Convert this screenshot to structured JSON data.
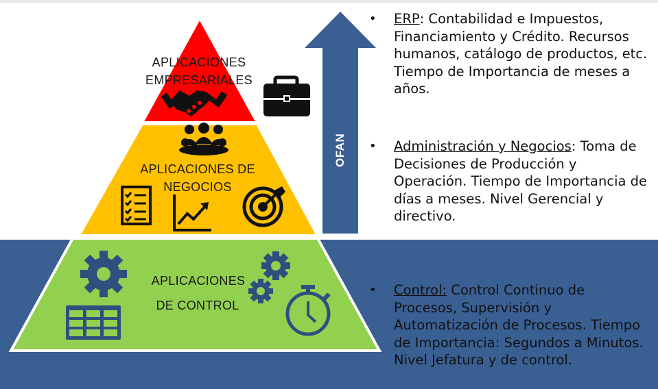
{
  "pyramid": {
    "levels": [
      {
        "id": "top",
        "label_line1": "APLICACIONES",
        "label_line2": "EMPRESARIALES",
        "color": "#ff0000"
      },
      {
        "id": "middle",
        "label_line1": "APLICACIONES DE",
        "label_line2": "NEGOCIOS",
        "color": "#ffc000"
      },
      {
        "id": "bottom",
        "label_line1": "APLICACIONES",
        "label_line2": "DE CONTROL",
        "color": "#92d050"
      }
    ]
  },
  "arrow": {
    "label": "OFAN",
    "color": "#3a5f93"
  },
  "band_color": "#3a5f93",
  "bullets": [
    {
      "bullet": "•",
      "title": "ERP",
      "separator": ":",
      "text": " Contabilidad e Impuestos, Financiamiento y Crédito. Recursos humanos, catálogo de productos, etc. Tiempo de Importancia de meses a años."
    },
    {
      "bullet": "•",
      "title": "Administración y Negocios",
      "separator": ":",
      "text": " Toma de Decisiones de Producción y Operación. Tiempo de Importancia de días a meses. Nivel Gerencial y directivo."
    },
    {
      "bullet": "•",
      "title": "Control:",
      "separator": "",
      "text": " Control Continuo de Procesos, Supervisión y Automatización de Procesos. Tiempo de Importancia: Segundos a Minutos. Nivel Jefatura y de control."
    }
  ],
  "icons": {
    "top": [
      "handshake-icon",
      "briefcase-icon"
    ],
    "middle": [
      "team-meeting-icon",
      "checklist-icon",
      "growth-chart-icon",
      "target-icon"
    ],
    "bottom": [
      "gear-icon",
      "table-grid-icon",
      "gears-icon",
      "stopwatch-icon"
    ]
  }
}
